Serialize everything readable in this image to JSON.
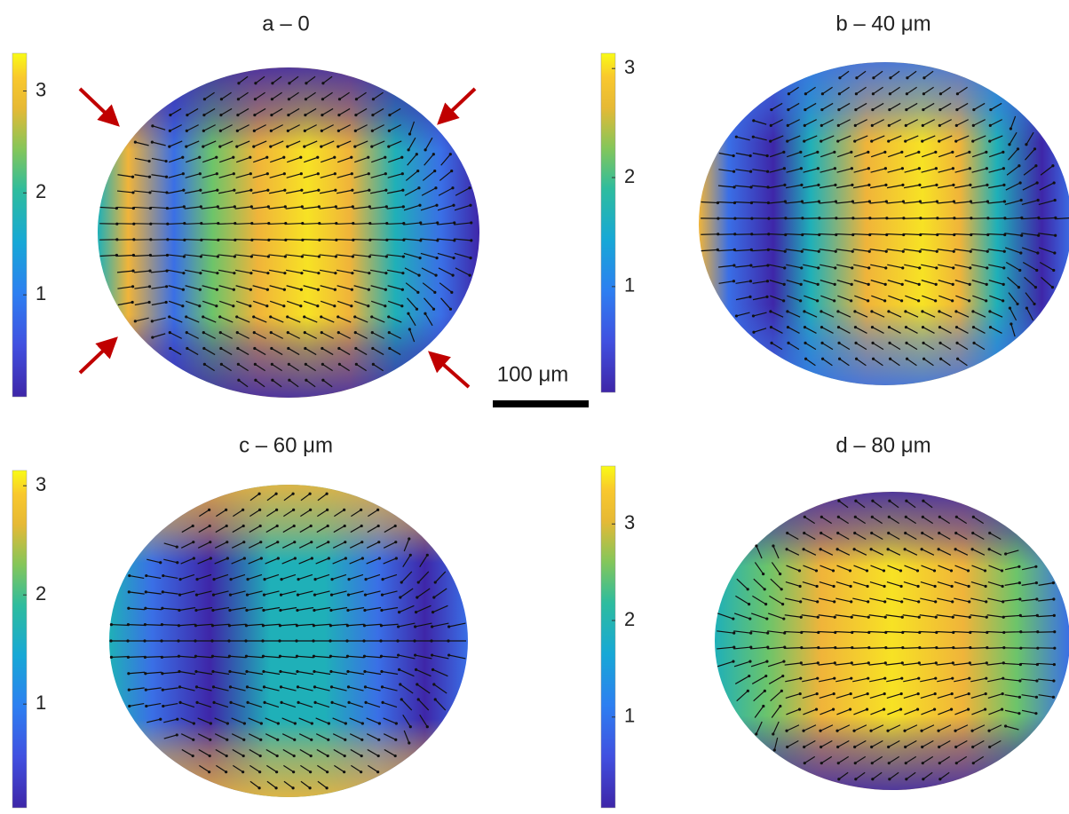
{
  "panels": [
    {
      "title": "a – 0",
      "colorbar": {
        "lim": [
          0,
          3.37
        ],
        "ticks": [
          1,
          2,
          3
        ]
      }
    },
    {
      "title": "b – 40 μm",
      "colorbar": {
        "lim": [
          0.03,
          3.14
        ],
        "ticks": [
          1,
          2,
          3
        ]
      }
    },
    {
      "title": "c – 60 μm",
      "colorbar": {
        "lim": [
          0.05,
          3.14
        ],
        "ticks": [
          1,
          2,
          3
        ]
      }
    },
    {
      "title": "d – 80 μm",
      "colorbar": {
        "lim": [
          0.06,
          3.6
        ],
        "ticks": [
          1,
          2,
          3
        ]
      }
    }
  ],
  "scale_bar": "100 μm"
}
